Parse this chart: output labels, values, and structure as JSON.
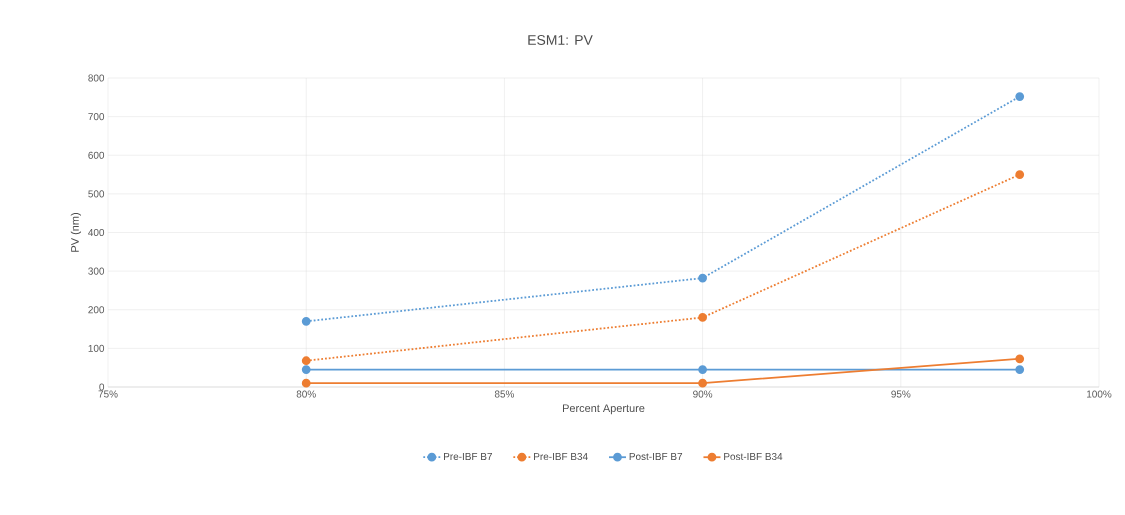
{
  "chart_data": {
    "type": "line",
    "title": "ESM1: PV",
    "xlabel": "Percent Aperture",
    "ylabel": "PV (nm)",
    "x": [
      80,
      90,
      98
    ],
    "series": [
      {
        "name": "Pre-IBF B7",
        "color": "#5b9bd5",
        "line_style": "dotted",
        "values": [
          170,
          282,
          752
        ]
      },
      {
        "name": "Pre-IBF B34",
        "color": "#ed7d31",
        "line_style": "dotted",
        "values": [
          68,
          180,
          550
        ]
      },
      {
        "name": "Post-IBF B7",
        "color": "#5b9bd5",
        "line_style": "solid",
        "values": [
          45,
          45,
          45
        ]
      },
      {
        "name": "Post-IBF B34",
        "color": "#ed7d31",
        "line_style": "solid",
        "values": [
          10,
          10,
          73
        ]
      }
    ],
    "xlim": [
      75,
      100
    ],
    "xticks": [
      {
        "value": 75,
        "label": "75%"
      },
      {
        "value": 80,
        "label": "80%"
      },
      {
        "value": 85,
        "label": "85%"
      },
      {
        "value": 90,
        "label": "90%"
      },
      {
        "value": 95,
        "label": "95%"
      },
      {
        "value": 100,
        "label": "100%"
      }
    ],
    "ylim": [
      0,
      800
    ],
    "yticks": [
      0,
      100,
      200,
      300,
      400,
      500,
      600,
      700,
      800
    ],
    "grid": true,
    "legend": "bottom",
    "marker": "circle"
  }
}
